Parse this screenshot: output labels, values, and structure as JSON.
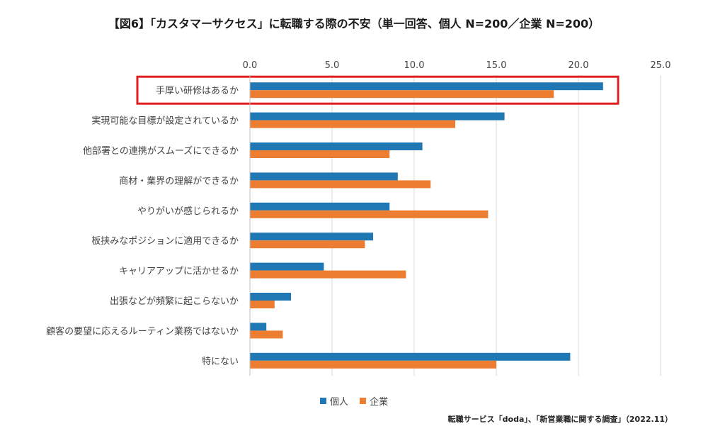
{
  "title": "【図6】「カスタマーサクセス」に転職する際の不安（単一回答、個人 N=200／企業 N=200）",
  "source": "転職サービス「doda」、「新営業職に関する調査」（2022.11）",
  "chart_data": {
    "type": "bar",
    "orientation": "horizontal",
    "categories": [
      "手厚い研修はあるか",
      "実現可能な目標が設定されているか",
      "他部署との連携がスムーズにできるか",
      "商材・業界の理解ができるか",
      "やりがいが感じられるか",
      "板挟みなポジションに適用できるか",
      "キャリアアップに活かせるか",
      "出張などが頻繁に起こらないか",
      "顧客の要望に応えるルーティン業務ではないか",
      "特にない"
    ],
    "series": [
      {
        "name": "個人",
        "color": "#1f77b4",
        "values": [
          21.5,
          15.5,
          10.5,
          9.0,
          8.5,
          7.5,
          4.5,
          2.5,
          1.0,
          19.5
        ]
      },
      {
        "name": "企業",
        "color": "#ed7d31",
        "values": [
          18.5,
          12.5,
          8.5,
          11.0,
          14.5,
          7.0,
          9.5,
          1.5,
          2.0,
          15.0
        ]
      }
    ],
    "xlim": [
      0,
      25
    ],
    "ticks": [
      "0.0",
      "5.0",
      "10.0",
      "15.0",
      "20.0",
      "25.0"
    ],
    "axis_position": "top",
    "grid": true,
    "legend": "bottom",
    "highlight_category": "手厚い研修はあるか",
    "highlight_color": "#e02020"
  }
}
